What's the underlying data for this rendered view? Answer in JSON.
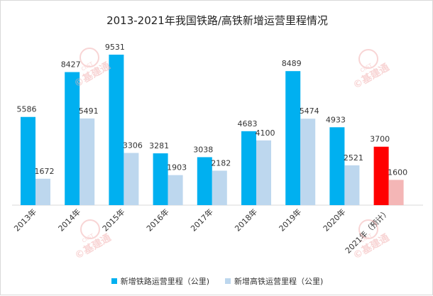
{
  "chart_data": {
    "type": "bar",
    "title": "2013-2021年我国铁路/高铁新增运营里程情况",
    "categories": [
      "2013年",
      "2014年",
      "2015年",
      "2016年",
      "2017年",
      "2018年",
      "2019年",
      "2020年",
      "2021年（预计）"
    ],
    "series": [
      {
        "name": "新增铁路运营里程（公里)",
        "color": "#00b0f0",
        "values": [
          5586,
          8427,
          9531,
          3281,
          3038,
          4683,
          8489,
          4933,
          3700
        ]
      },
      {
        "name": "新增高铁运营里程（公里)",
        "color": "#bdd7ee",
        "values": [
          1672,
          5491,
          3306,
          1903,
          2182,
          4100,
          5474,
          2521,
          1600
        ]
      }
    ],
    "highlight": {
      "category_index": 8,
      "colors": [
        "#ff0000",
        "#f4b6b6"
      ]
    },
    "ylim": [
      0,
      9531
    ],
    "grid": false,
    "legend_position": "bottom"
  },
  "watermark": {
    "text": "基建通",
    "subtext": "CIIST",
    "color": "#f3b3b3"
  }
}
